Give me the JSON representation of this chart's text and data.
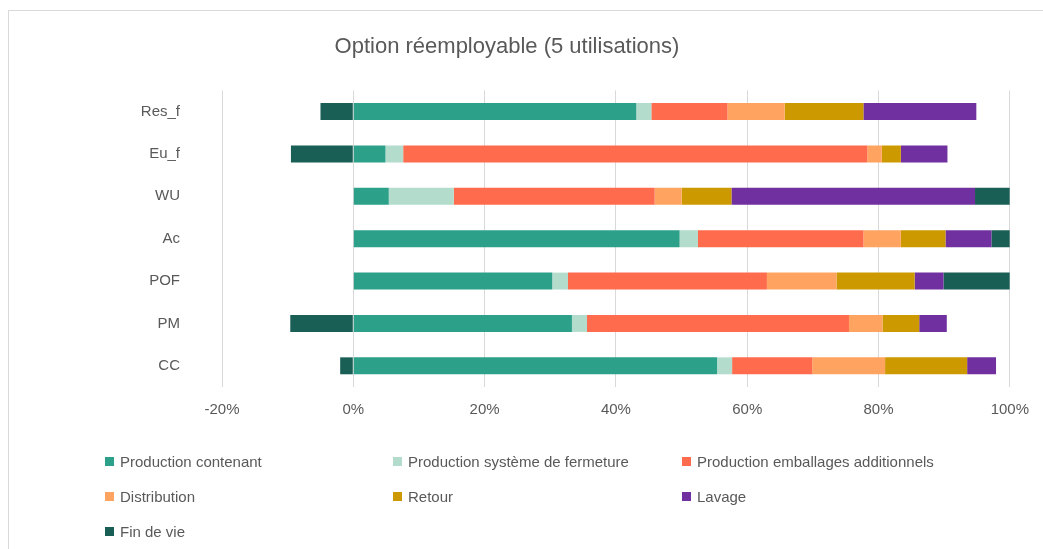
{
  "chart_data": {
    "type": "bar",
    "orientation": "horizontal",
    "stacked": true,
    "title": "Option réemployable (5 utilisations)",
    "categories": [
      "Res_f",
      "Eu_f",
      "WU",
      "Ac",
      "POF",
      "PM",
      "CC"
    ],
    "series": [
      {
        "name": "Production contenant",
        "color": "#2ca089",
        "values": [
          43.1,
          4.9,
          5.4,
          49.7,
          30.3,
          33.3,
          55.4
        ]
      },
      {
        "name": "Production système de fermeture",
        "color": "#b3dccd",
        "values": [
          2.3,
          2.7,
          9.9,
          2.8,
          2.4,
          2.3,
          2.3
        ]
      },
      {
        "name": "Production emballages additionnels",
        "color": "#ff6b4d",
        "values": [
          11.6,
          70.7,
          30.6,
          25.2,
          30.3,
          39.9,
          12.2
        ]
      },
      {
        "name": "Distribution",
        "color": "#ffa361",
        "values": [
          8.7,
          2.2,
          4.1,
          5.7,
          10.6,
          5.1,
          11.1
        ]
      },
      {
        "name": "Retour",
        "color": "#cc9900",
        "values": [
          12.0,
          2.9,
          7.6,
          6.8,
          11.9,
          5.6,
          12.5
        ]
      },
      {
        "name": "Lavage",
        "color": "#7030a0",
        "values": [
          17.2,
          7.1,
          37.1,
          7.0,
          4.4,
          4.2,
          4.4
        ]
      },
      {
        "name": "Fin de vie",
        "color": "#1a5f55",
        "values": [
          -5.0,
          -9.5,
          5.3,
          2.8,
          10.1,
          -9.6,
          -2.0
        ]
      }
    ],
    "xlim": [
      -20,
      100
    ],
    "xticks": [
      {
        "value": -20,
        "label": "-20%"
      },
      {
        "value": 0,
        "label": "0%"
      },
      {
        "value": 20,
        "label": "20%"
      },
      {
        "value": 40,
        "label": "40%"
      },
      {
        "value": 60,
        "label": "60%"
      },
      {
        "value": 80,
        "label": "80%"
      },
      {
        "value": 100,
        "label": "100%"
      }
    ],
    "grid": "x",
    "legend": "bottom"
  }
}
